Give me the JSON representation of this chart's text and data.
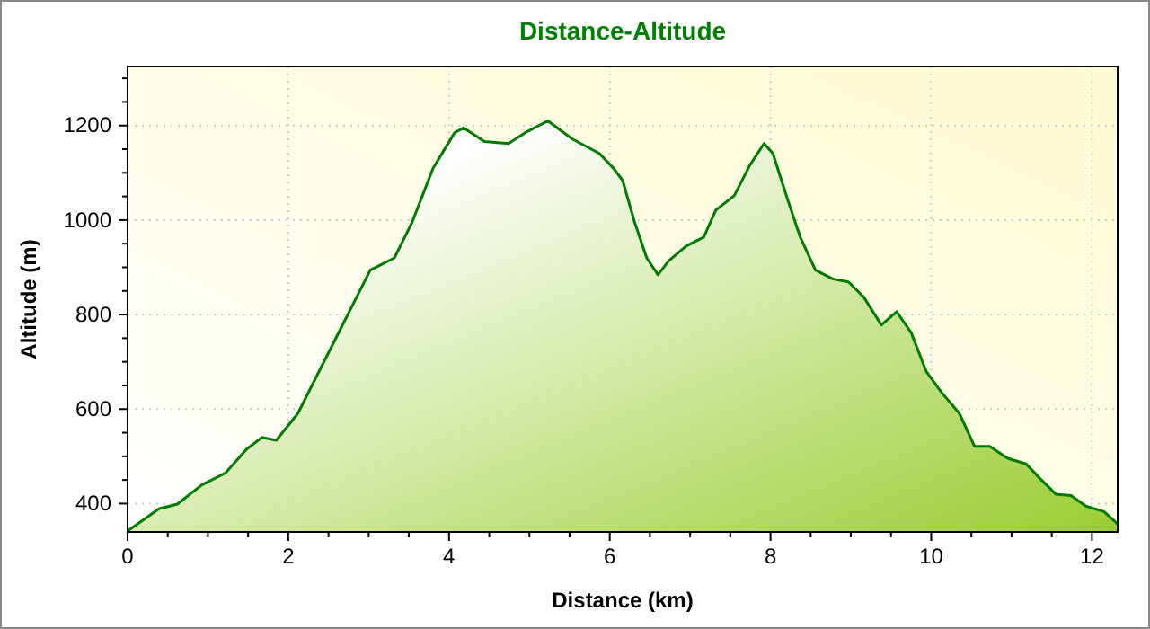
{
  "chart_data": {
    "type": "area",
    "title": "Distance-Altitude",
    "xlabel": "Distance (km)",
    "ylabel": "Altitude (m)",
    "x": [
      0,
      0.39,
      0.62,
      0.92,
      1.22,
      1.48,
      1.67,
      1.85,
      2.12,
      2.38,
      2.72,
      3.02,
      3.32,
      3.54,
      3.8,
      4.07,
      4.18,
      4.44,
      4.74,
      4.97,
      5.23,
      5.53,
      5.87,
      6.05,
      6.16,
      6.31,
      6.46,
      6.6,
      6.73,
      6.95,
      7.17,
      7.32,
      7.55,
      7.74,
      7.92,
      8.03,
      8.22,
      8.37,
      8.56,
      8.78,
      8.97,
      9.16,
      9.38,
      9.57,
      9.75,
      9.94,
      10.13,
      10.35,
      10.54,
      10.73,
      10.95,
      11.18,
      11.36,
      11.55,
      11.74,
      11.92,
      12.15,
      12.32
    ],
    "series": [
      {
        "color": "#007a00",
        "values": [
          342,
          389,
          399,
          439,
          465,
          515,
          540,
          534,
          591,
          679,
          793,
          894,
          920,
          995,
          1109,
          1185,
          1195,
          1166,
          1162,
          1187,
          1210,
          1172,
          1141,
          1109,
          1084,
          995,
          920,
          884,
          913,
          945,
          964,
          1021,
          1052,
          1115,
          1162,
          1141,
          1040,
          964,
          894,
          875,
          869,
          837,
          778,
          806,
          762,
          679,
          635,
          591,
          521,
          521,
          496,
          484,
          452,
          420,
          417,
          395,
          383,
          357
        ]
      }
    ],
    "xlim": [
      0,
      12.32
    ],
    "ylim": [
      340,
      1325
    ],
    "xticks": [
      0,
      {
        "value": 0.5,
        "label": null
      },
      {
        "value": 1,
        "label": null
      },
      {
        "value": 1.5,
        "label": null
      },
      2,
      {
        "value": 2.5,
        "label": null
      },
      {
        "value": 3,
        "label": null
      },
      {
        "value": 3.5,
        "label": null
      },
      4,
      {
        "value": 4.5,
        "label": null
      },
      {
        "value": 5,
        "label": null
      },
      {
        "value": 5.5,
        "label": null
      },
      6,
      {
        "value": 6.5,
        "label": null
      },
      {
        "value": 7,
        "label": null
      },
      {
        "value": 7.5,
        "label": null
      },
      8,
      {
        "value": 8.5,
        "label": null
      },
      {
        "value": 9,
        "label": null
      },
      {
        "value": 9.5,
        "label": null
      },
      10,
      {
        "value": 10.5,
        "label": null
      },
      {
        "value": 11,
        "label": null
      },
      {
        "value": 11.5,
        "label": null
      },
      12
    ],
    "yticks": [
      400,
      {
        "value": 450,
        "label": null
      },
      {
        "value": 500,
        "label": null
      },
      {
        "value": 550,
        "label": null
      },
      600,
      {
        "value": 650,
        "label": null
      },
      {
        "value": 700,
        "label": null
      },
      {
        "value": 750,
        "label": null
      },
      800,
      {
        "value": 850,
        "label": null
      },
      {
        "value": 900,
        "label": null
      },
      {
        "value": 950,
        "label": null
      },
      1000,
      {
        "value": 1050,
        "label": null
      },
      {
        "value": 1100,
        "label": null
      },
      {
        "value": 1150,
        "label": null
      },
      1200,
      {
        "value": 1250,
        "label": null
      },
      {
        "value": 1300,
        "label": null
      }
    ],
    "grid": true
  }
}
